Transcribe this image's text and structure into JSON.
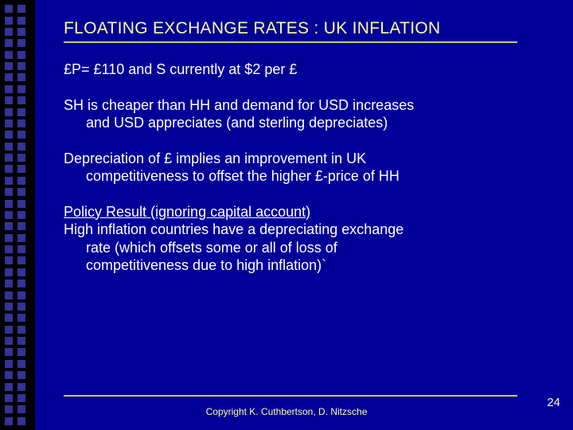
{
  "slide": {
    "title": "FLOATING EXCHANGE RATES : UK INFLATION",
    "p1": "£P= £110  and S currently at $2 per £",
    "p2_l1": "SH is cheaper than HH and demand for USD increases",
    "p2_l2": "and USD appreciates (and sterling depreciates)",
    "p3_l1": "Depreciation of £ implies an improvement in UK",
    "p3_l2": "competitiveness to offset the higher £-price of HH",
    "p4_head": "Policy Result (ignoring capital account)",
    "p4_l1": "High inflation countries have a depreciating exchange",
    "p4_l2": "rate (which offsets some or all of loss of",
    "p4_l3": "competitiveness due to high inflation)`",
    "copyright": "Copyright K. Cuthbertson, D. Nitzsche",
    "page_number": "24"
  },
  "style": {
    "background_color": "#000099",
    "border_bg": "#000000",
    "square_color": "#333399",
    "title_color": "#ffff99",
    "underline_color": "#cccc66",
    "body_color": "#ffffff",
    "title_fontsize": 21,
    "body_fontsize": 18,
    "footer_fontsize": 12,
    "pagenum_fontsize": 15,
    "squares_per_col": 37,
    "col_positions": [
      6,
      22
    ]
  }
}
